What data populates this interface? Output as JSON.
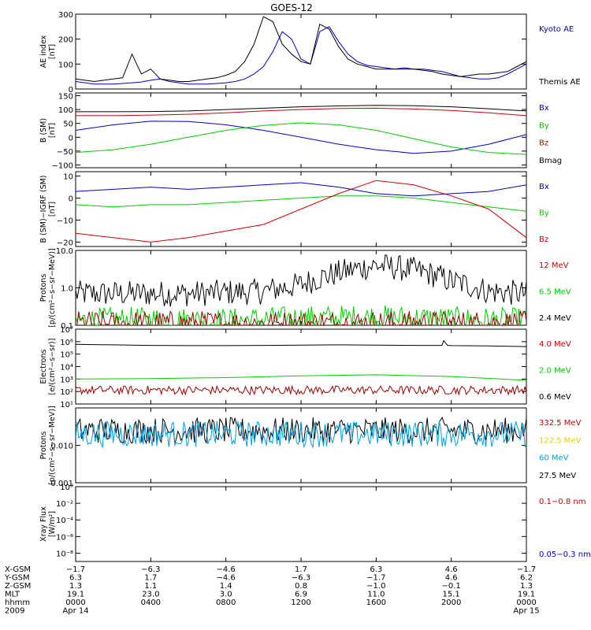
{
  "title": "GOES-12",
  "colors": {
    "black": "#000000",
    "blue": "#0000cc",
    "red": "#cc0000",
    "darkred": "#990000",
    "green": "#00cc00",
    "lightblue": "#00a0e0",
    "yellow": "#e0d000"
  },
  "chart_data": [
    {
      "type": "line",
      "ylabel": [
        "AE index",
        "[nT]"
      ],
      "ylim": [
        0,
        300
      ],
      "scale": "linear",
      "yticks": [
        "0",
        "100",
        "200",
        "300"
      ],
      "ytick_values": [
        0,
        100,
        200,
        300
      ],
      "legend": [
        {
          "name": "Kyoto AE",
          "color": "#0000cc"
        },
        {
          "name": "Themis AE",
          "color": "#000000"
        }
      ],
      "series": [
        {
          "name": "Kyoto AE",
          "color": "#0000cc",
          "x": [
            0,
            0.5,
            1,
            1.5,
            2,
            2.5,
            3,
            3.5,
            4,
            4.5,
            5,
            5.5,
            6,
            6.5,
            7,
            7.5,
            8,
            8.5,
            9,
            9.5,
            10,
            10.5,
            11,
            11.5,
            12,
            12.5,
            13,
            13.5,
            14,
            14.5,
            15,
            15.5,
            16,
            16.5,
            17,
            17.5,
            18,
            18.5,
            19,
            19.5,
            20,
            20.5,
            21,
            21.5,
            22,
            22.5,
            23,
            23.5,
            24
          ],
          "y": [
            30,
            25,
            20,
            20,
            20,
            22,
            25,
            28,
            35,
            40,
            30,
            25,
            20,
            20,
            20,
            22,
            25,
            30,
            40,
            60,
            90,
            150,
            230,
            200,
            120,
            100,
            230,
            250,
            190,
            140,
            110,
            95,
            90,
            85,
            80,
            85,
            80,
            80,
            75,
            70,
            60,
            50,
            45,
            40,
            40,
            45,
            60,
            80,
            100
          ]
        },
        {
          "name": "Themis AE",
          "color": "#000000",
          "x": [
            0,
            0.5,
            1,
            1.5,
            2,
            2.5,
            3,
            3.5,
            4,
            4.5,
            5,
            5.5,
            6,
            6.5,
            7,
            7.5,
            8,
            8.5,
            9,
            9.5,
            10,
            10.5,
            11,
            11.5,
            12,
            12.5,
            13,
            13.5,
            14,
            14.5,
            15,
            15.5,
            16,
            16.5,
            17,
            17.5,
            18,
            18.5,
            19,
            19.5,
            20,
            20.5,
            21,
            21.5,
            22,
            22.5,
            23,
            23.5,
            24
          ],
          "y": [
            40,
            35,
            30,
            35,
            40,
            45,
            140,
            60,
            80,
            40,
            35,
            30,
            30,
            35,
            40,
            45,
            55,
            70,
            110,
            180,
            290,
            270,
            180,
            140,
            110,
            100,
            260,
            240,
            170,
            120,
            100,
            90,
            80,
            80,
            80,
            80,
            80,
            75,
            70,
            60,
            55,
            50,
            55,
            60,
            60,
            65,
            70,
            90,
            110
          ]
        }
      ]
    },
    {
      "type": "line",
      "ylabel": [
        "B (SM)",
        "[nT]"
      ],
      "ylim": [
        -110,
        160
      ],
      "scale": "linear",
      "yticks": [
        "−100",
        "−50",
        "0",
        "50",
        "100",
        "150"
      ],
      "ytick_values": [
        -100,
        -50,
        0,
        50,
        100,
        150
      ],
      "legend": [
        {
          "name": "Bx",
          "color": "#0000cc"
        },
        {
          "name": "By",
          "color": "#00cc00"
        },
        {
          "name": "Bz",
          "color": "#cc0000"
        },
        {
          "name": "Bmag",
          "color": "#000000"
        }
      ],
      "series": [
        {
          "name": "Bmag",
          "color": "#000000",
          "x": [
            0,
            2,
            4,
            6,
            8,
            10,
            12,
            14,
            16,
            18,
            20,
            22,
            24
          ],
          "y": [
            92,
            92,
            93,
            95,
            100,
            105,
            110,
            113,
            115,
            114,
            110,
            103,
            95
          ]
        },
        {
          "name": "Bz",
          "color": "#cc0000",
          "x": [
            0,
            2,
            4,
            6,
            8,
            10,
            12,
            14,
            16,
            18,
            20,
            22,
            24
          ],
          "y": [
            78,
            78,
            80,
            83,
            88,
            95,
            100,
            104,
            105,
            102,
            97,
            88,
            78
          ]
        },
        {
          "name": "Bx",
          "color": "#0000cc",
          "x": [
            0,
            2,
            4,
            6,
            8,
            10,
            12,
            14,
            16,
            18,
            20,
            22,
            24
          ],
          "y": [
            25,
            45,
            58,
            57,
            45,
            25,
            0,
            -25,
            -45,
            -58,
            -50,
            -25,
            10
          ]
        },
        {
          "name": "By",
          "color": "#00cc00",
          "x": [
            0,
            2,
            4,
            6,
            8,
            10,
            12,
            14,
            16,
            18,
            20,
            22,
            24
          ],
          "y": [
            -55,
            -45,
            -25,
            0,
            25,
            43,
            52,
            45,
            25,
            -5,
            -35,
            -55,
            -62
          ]
        }
      ]
    },
    {
      "type": "line",
      "ylabel": [
        "B (SM)−IGRF (SM)",
        "[nT]"
      ],
      "ylim": [
        -22,
        12
      ],
      "scale": "linear",
      "yticks": [
        "−20",
        "−10",
        "0",
        "10"
      ],
      "ytick_values": [
        -20,
        -10,
        0,
        10
      ],
      "legend": [
        {
          "name": "Bx",
          "color": "#0000cc"
        },
        {
          "name": "By",
          "color": "#00cc00"
        },
        {
          "name": "Bz",
          "color": "#cc0000"
        }
      ],
      "series": [
        {
          "name": "Bx",
          "color": "#0000cc",
          "x": [
            0,
            2,
            4,
            6,
            8,
            10,
            12,
            14,
            16,
            18,
            20,
            22,
            24
          ],
          "y": [
            3,
            4,
            5,
            4,
            5,
            6,
            7,
            5,
            2,
            1,
            2,
            3,
            6
          ]
        },
        {
          "name": "By",
          "color": "#00cc00",
          "x": [
            0,
            2,
            4,
            6,
            8,
            10,
            12,
            14,
            16,
            18,
            20,
            22,
            24
          ],
          "y": [
            -3,
            -4,
            -3,
            -3,
            -2,
            -1,
            0,
            1,
            1,
            0,
            -2,
            -4,
            -6
          ]
        },
        {
          "name": "Bz",
          "color": "#cc0000",
          "x": [
            0,
            2,
            4,
            6,
            8,
            10,
            12,
            14,
            16,
            18,
            20,
            22,
            24
          ],
          "y": [
            -16,
            -18,
            -20,
            -18,
            -15,
            -12,
            -5,
            2,
            8,
            6,
            1,
            -5,
            -18
          ]
        }
      ]
    },
    {
      "type": "line",
      "ylabel": [
        "Protons",
        "[p/(cm²−s−sr−MeV)]"
      ],
      "ylim": [
        0.1,
        10
      ],
      "scale": "log",
      "yticks": [
        "0.1",
        "1.0",
        "10.0"
      ],
      "ytick_values": [
        0.1,
        1,
        10
      ],
      "legend": [
        {
          "name": "12 MeV",
          "color": "#cc0000"
        },
        {
          "name": "6.5 MeV",
          "color": "#00cc00"
        },
        {
          "name": "2.4 MeV",
          "color": "#000000"
        }
      ],
      "series": [
        {
          "name": "2.4 MeV",
          "color": "#000000",
          "noisy": true,
          "x": [
            0,
            2,
            4,
            6,
            8,
            10,
            12,
            14,
            16,
            18,
            20,
            22,
            24
          ],
          "y": [
            0.7,
            0.7,
            0.7,
            0.7,
            0.75,
            0.8,
            1.2,
            2.5,
            4.0,
            3.0,
            1.5,
            0.8,
            0.7
          ]
        },
        {
          "name": "6.5 MeV",
          "color": "#00cc00",
          "noisy": true,
          "x": [
            0,
            4,
            8,
            12,
            16,
            20,
            24
          ],
          "y": [
            0.13,
            0.14,
            0.13,
            0.15,
            0.16,
            0.14,
            0.13
          ]
        },
        {
          "name": "12 MeV",
          "color": "#990000",
          "noisy": true,
          "x": [
            0,
            24
          ],
          "y": [
            0.11,
            0.11
          ]
        }
      ]
    },
    {
      "type": "line",
      "ylabel": [
        "Electrons",
        "[e/(cm²−s−sr)]"
      ],
      "ylim": [
        10,
        10000000
      ],
      "scale": "log",
      "yticks": [
        "10¹",
        "10²",
        "10³",
        "10⁴",
        "10⁵",
        "10⁶",
        "10⁷"
      ],
      "ytick_values": [
        10,
        100,
        1000,
        10000,
        100000,
        1000000,
        10000000
      ],
      "legend": [
        {
          "name": "4.0 MeV",
          "color": "#cc0000"
        },
        {
          "name": "2.0 MeV",
          "color": "#00cc00"
        },
        {
          "name": "0.6 MeV",
          "color": "#000000"
        }
      ],
      "series": [
        {
          "name": "0.6 MeV",
          "color": "#000000",
          "x": [
            0,
            2,
            4,
            6,
            8,
            10,
            12,
            14,
            16,
            18,
            19.5,
            19.6,
            19.8,
            20,
            22,
            24
          ],
          "y": [
            600000,
            550000,
            500000,
            480000,
            480000,
            500000,
            520000,
            550000,
            520000,
            500000,
            500000,
            1200000,
            500000,
            480000,
            450000,
            400000
          ]
        },
        {
          "name": "2.0 MeV",
          "color": "#00cc00",
          "x": [
            0,
            4,
            8,
            12,
            16,
            20,
            24
          ],
          "y": [
            1000,
            1100,
            1300,
            1800,
            2200,
            1600,
            800
          ]
        },
        {
          "name": "4.0 MeV",
          "color": "#990000",
          "noisy": true,
          "x": [
            0,
            24
          ],
          "y": [
            130,
            130
          ]
        }
      ]
    },
    {
      "type": "line",
      "ylabel": [
        "Protons",
        "[p/(cm²−s−sr−MeV)]"
      ],
      "ylim": [
        0.001,
        0.1
      ],
      "scale": "log",
      "yticks": [
        "0.001",
        "0.010"
      ],
      "ytick_values": [
        0.001,
        0.01
      ],
      "legend": [
        {
          "name": "332.5 MeV",
          "color": "#cc0000"
        },
        {
          "name": "122.5 MeV",
          "color": "#e0d000"
        },
        {
          "name": "60 MeV",
          "color": "#00a0e0"
        },
        {
          "name": "27.5 MeV",
          "color": "#000000"
        }
      ],
      "series": [
        {
          "name": "27.5 MeV",
          "color": "#000000",
          "noisy": true,
          "x": [
            0,
            24
          ],
          "y": [
            0.025,
            0.025
          ]
        },
        {
          "name": "60 MeV",
          "color": "#00a0e0",
          "noisy": true,
          "x": [
            0,
            24
          ],
          "y": [
            0.02,
            0.02
          ]
        }
      ]
    },
    {
      "type": "line",
      "ylabel": [
        "Xray Flux",
        "[W/m²]"
      ],
      "ylim": [
        1e-09,
        1
      ],
      "scale": "log",
      "yticks": [
        "10⁻⁸",
        "10⁻⁶",
        "10⁻⁴",
        "10⁻²",
        "10⁰"
      ],
      "ytick_values": [
        1e-08,
        1e-06,
        0.0001,
        0.01,
        1
      ],
      "legend": [
        {
          "name": "0.1−0.8 nm",
          "color": "#cc0000"
        },
        {
          "name": "0.05−0.3 nm",
          "color": "#0000cc"
        }
      ],
      "series": []
    }
  ],
  "xaxis_table": {
    "row_labels": [
      "X-GSM",
      "Y-GSM",
      "Z-GSM",
      "MLT",
      "hhmm",
      "2009"
    ],
    "columns": [
      [
        "−1.7",
        "6.3",
        "1.3",
        "19.1",
        "0000",
        "Apr 14"
      ],
      [
        "−6.3",
        "1.7",
        "1.1",
        "23.0",
        "0400",
        ""
      ],
      [
        "−4.6",
        "−4.6",
        "1.4",
        "3.0",
        "0800",
        ""
      ],
      [
        "1.7",
        "−6.3",
        "0.8",
        "6.9",
        "1200",
        ""
      ],
      [
        "6.3",
        "−1.7",
        "−1.0",
        "11.0",
        "1600",
        ""
      ],
      [
        "4.6",
        "4.6",
        "−0.1",
        "15.1",
        "2000",
        ""
      ],
      [
        "−1.7",
        "6.2",
        "1.3",
        "19.1",
        "0000",
        "Apr 15"
      ]
    ],
    "x_hours": [
      0,
      4,
      8,
      12,
      16,
      20,
      24
    ]
  }
}
